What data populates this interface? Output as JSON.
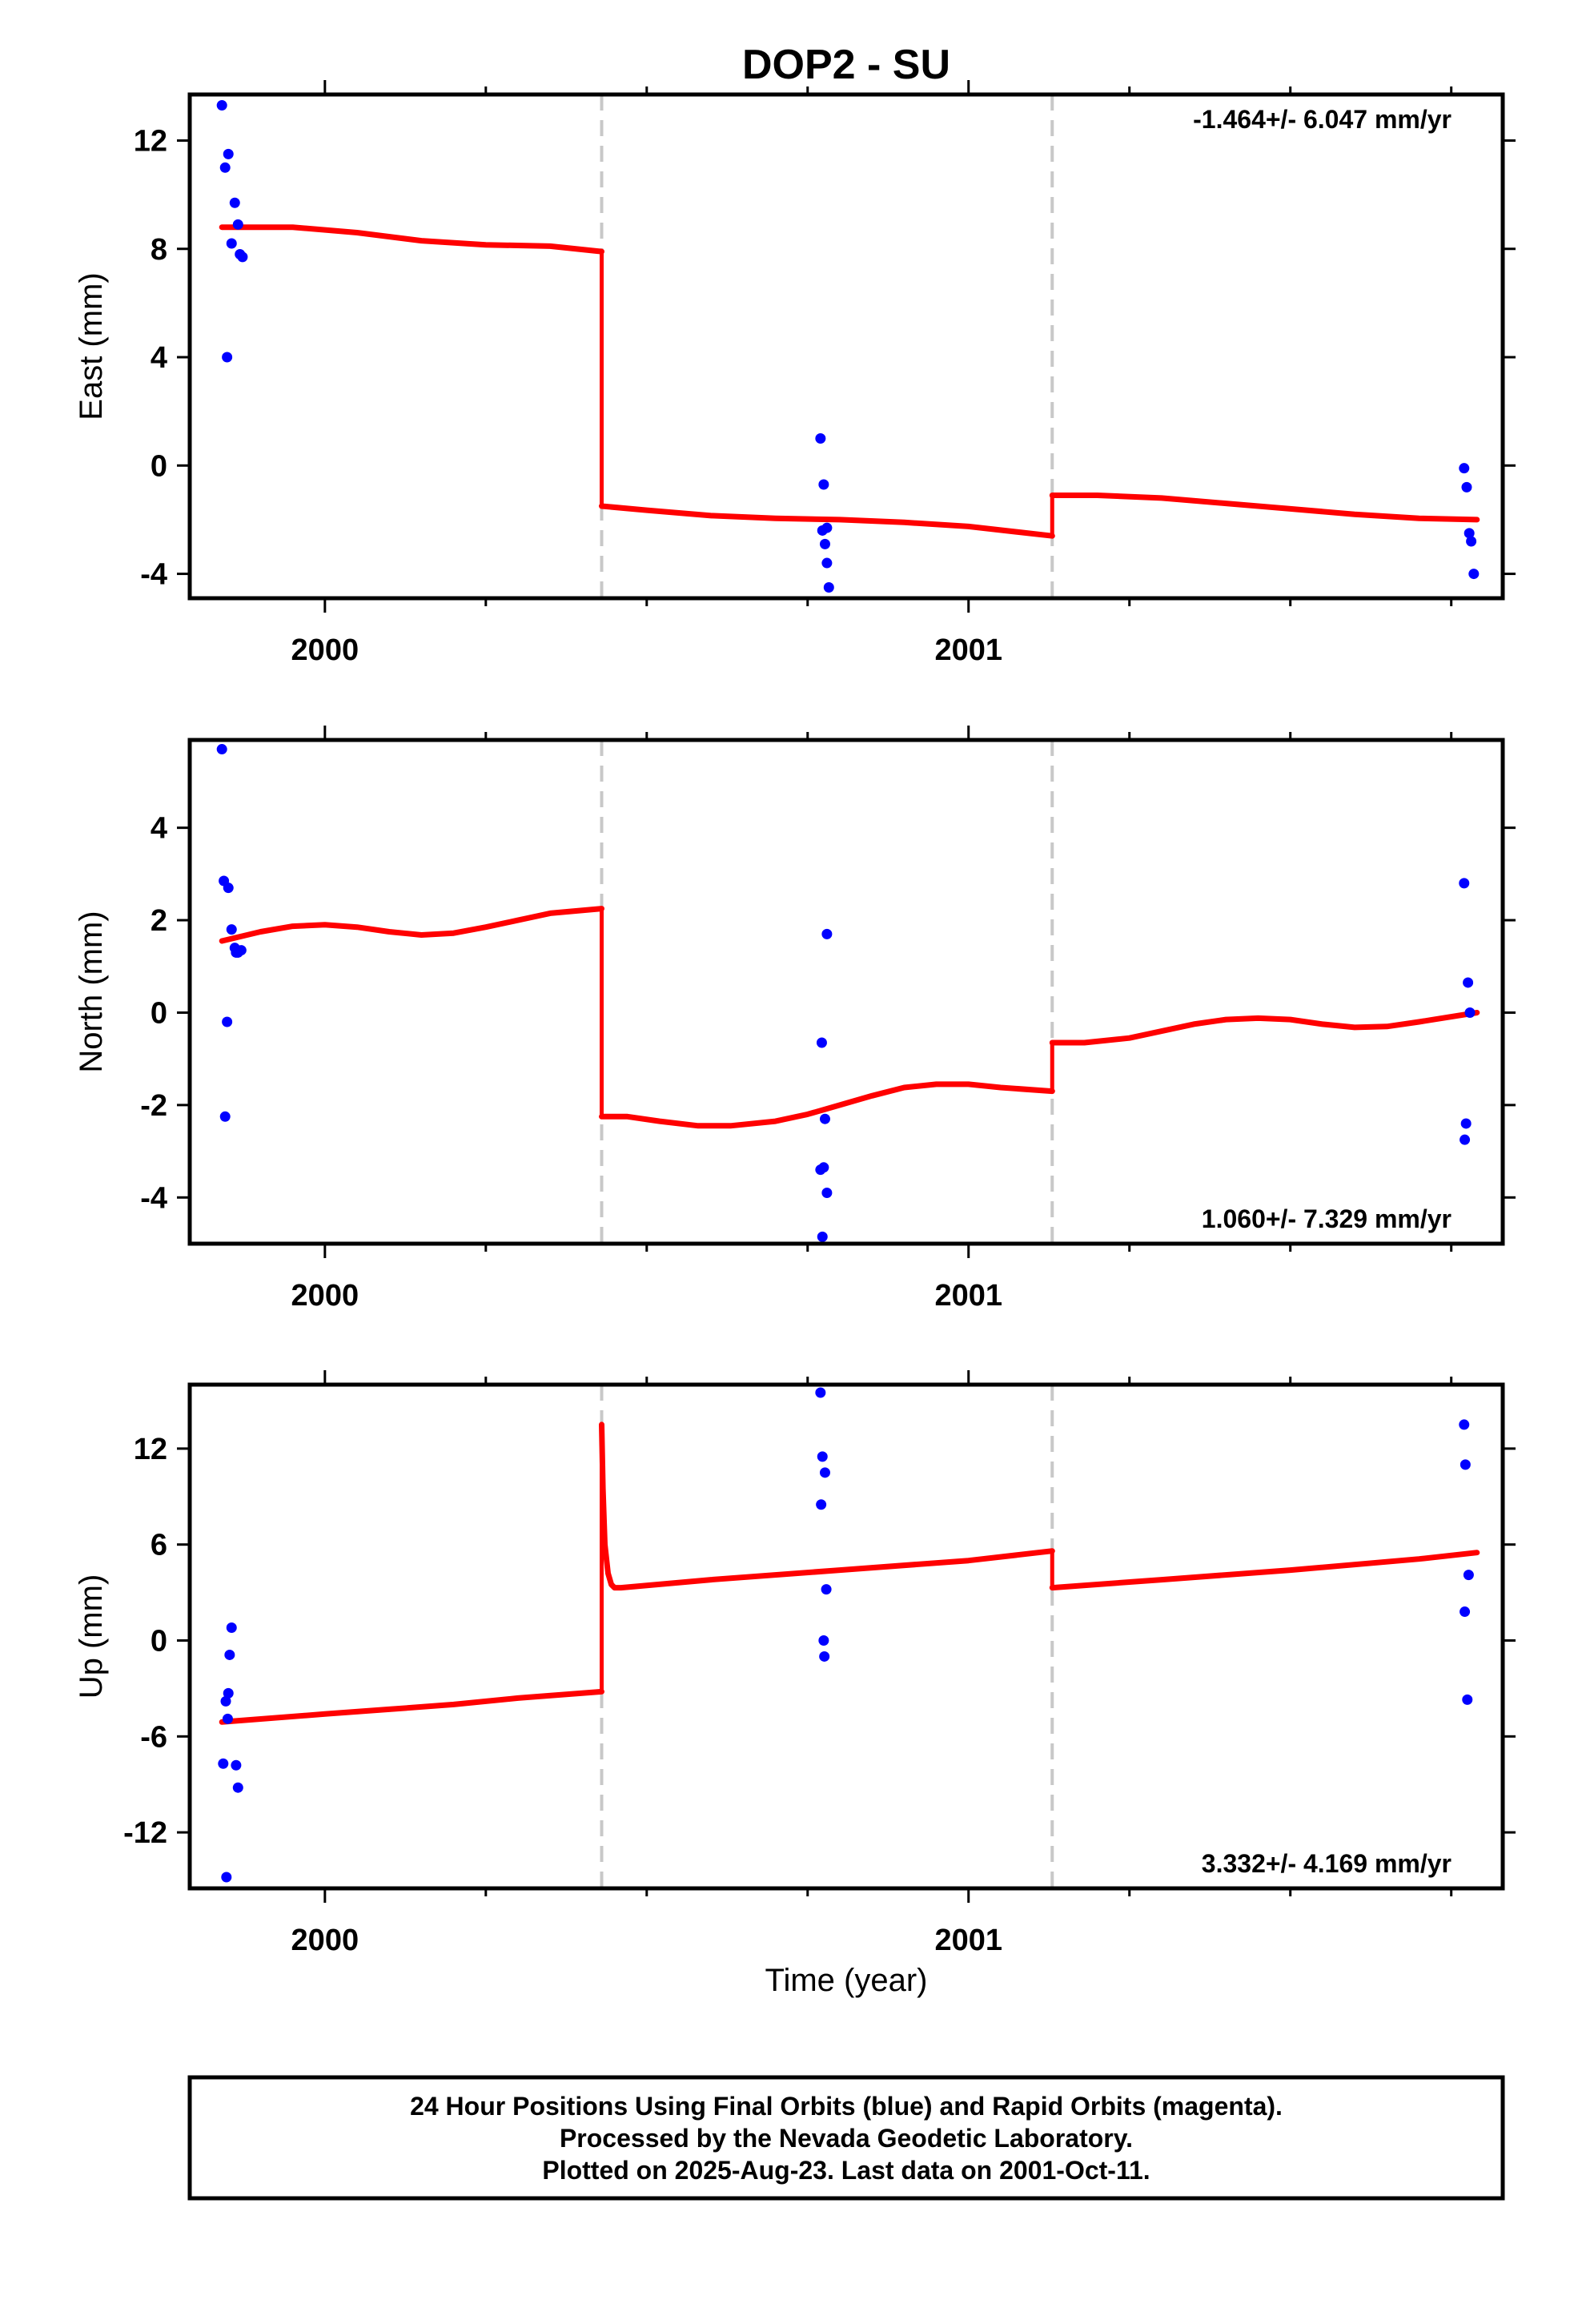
{
  "figure": {
    "title": "DOP2 - SU",
    "xlabel": "Time (year)",
    "footer_lines": [
      "24 Hour Positions Using Final Orbits (blue) and Rapid Orbits (magenta).",
      "Processed by the Nevada Geodetic Laboratory.",
      "Plotted on 2025-Aug-23. Last data on 2001-Oct-11."
    ]
  },
  "colors": {
    "final_orbits": "#0000ff",
    "model_fit": "#ff0000",
    "breaks": "#c8c8c8",
    "frame": "#000000"
  },
  "chart_data": [
    {
      "type": "scatter",
      "ylabel": "East (mm)",
      "rate_text": "-1.464+/- 6.047 mm/yr",
      "rate_position": "top-right",
      "xlim": [
        1999.79,
        2001.83
      ],
      "ylim": [
        -4.9,
        13.7
      ],
      "yticks": [
        -4,
        0,
        4,
        8,
        12
      ],
      "xticks": [
        2000,
        2001
      ],
      "minor_xticks": [
        2000.25,
        2000.5,
        2000.75,
        2001.25,
        2001.5,
        2001.75
      ],
      "breaks": [
        2000.43,
        2001.13
      ],
      "series": [
        {
          "x": [
            1999.84,
            1999.845,
            1999.85,
            1999.855,
            1999.86,
            1999.865,
            1999.868,
            1999.872,
            1999.848
          ],
          "y": [
            13.3,
            11.0,
            11.5,
            8.2,
            9.7,
            8.9,
            7.8,
            7.7,
            4.0
          ]
        },
        {
          "x": [
            2000.77,
            2000.775,
            2000.78,
            2000.773,
            2000.777,
            2000.78,
            2000.783,
            2001.77,
            2001.774,
            2001.778,
            2001.781,
            2001.785
          ],
          "y": [
            1.0,
            -0.7,
            -2.3,
            -2.4,
            -2.9,
            -3.6,
            -4.5,
            -0.1,
            -0.8,
            -2.5,
            -2.8,
            -4.0
          ]
        }
      ],
      "model_segments": [
        {
          "x": [
            1999.84,
            1999.95,
            2000.05,
            2000.15,
            2000.25,
            2000.35,
            2000.43
          ],
          "y": [
            8.8,
            8.8,
            8.6,
            8.3,
            8.15,
            8.1,
            7.9
          ]
        },
        {
          "x": [
            2000.43,
            2000.5,
            2000.6,
            2000.7,
            2000.8,
            2000.9,
            2001.0,
            2001.13
          ],
          "y": [
            -1.5,
            -1.65,
            -1.85,
            -1.95,
            -2.0,
            -2.1,
            -2.25,
            -2.6
          ]
        },
        {
          "x": [
            2001.13,
            2001.2,
            2001.3,
            2001.4,
            2001.5,
            2001.6,
            2001.7,
            2001.79
          ],
          "y": [
            -1.1,
            -1.1,
            -1.2,
            -1.4,
            -1.6,
            -1.8,
            -1.95,
            -2.0
          ]
        }
      ]
    },
    {
      "type": "scatter",
      "ylabel": "North (mm)",
      "rate_text": "1.060+/- 7.329 mm/yr",
      "rate_position": "bottom-right",
      "xlim": [
        1999.79,
        2001.83
      ],
      "ylim": [
        -5.0,
        5.9
      ],
      "yticks": [
        -4,
        -2,
        0,
        2,
        4
      ],
      "xticks": [
        2000,
        2001
      ],
      "minor_xticks": [
        2000.25,
        2000.5,
        2000.75,
        2001.25,
        2001.5,
        2001.75
      ],
      "breaks": [
        2000.43,
        2001.13
      ],
      "series": [
        {
          "x": [
            1999.84,
            1999.843,
            1999.85,
            1999.855,
            1999.86,
            1999.865,
            1999.862,
            1999.848,
            1999.845,
            1999.87
          ],
          "y": [
            5.7,
            2.85,
            2.7,
            1.8,
            1.4,
            1.3,
            1.3,
            -0.2,
            -2.25,
            1.35
          ]
        },
        {
          "x": [
            2000.78,
            2000.772,
            2000.777,
            2000.77,
            2000.775,
            2000.78,
            2000.773,
            2001.77,
            2001.776,
            2001.779,
            2001.773,
            2001.771
          ],
          "y": [
            1.7,
            -0.65,
            -2.3,
            -3.4,
            -3.35,
            -3.9,
            -4.85,
            2.8,
            0.65,
            0.0,
            -2.4,
            -2.75
          ]
        }
      ],
      "model_segments": [
        {
          "x": [
            1999.84,
            1999.9,
            1999.95,
            2000.0,
            2000.05,
            2000.1,
            2000.15,
            2000.2,
            2000.25,
            2000.3,
            2000.35,
            2000.43
          ],
          "y": [
            1.55,
            1.75,
            1.87,
            1.9,
            1.85,
            1.75,
            1.68,
            1.72,
            1.85,
            2.0,
            2.15,
            2.25
          ]
        },
        {
          "x": [
            2000.43,
            2000.47,
            2000.52,
            2000.58,
            2000.63,
            2000.7,
            2000.75,
            2000.8,
            2000.85,
            2000.9,
            2000.95,
            2001.0,
            2001.05,
            2001.13
          ],
          "y": [
            -2.25,
            -2.25,
            -2.35,
            -2.45,
            -2.45,
            -2.35,
            -2.2,
            -2.0,
            -1.8,
            -1.62,
            -1.55,
            -1.55,
            -1.62,
            -1.7
          ]
        },
        {
          "x": [
            2001.13,
            2001.18,
            2001.25,
            2001.3,
            2001.35,
            2001.4,
            2001.45,
            2001.5,
            2001.55,
            2001.6,
            2001.65,
            2001.7,
            2001.79
          ],
          "y": [
            -0.65,
            -0.65,
            -0.55,
            -0.4,
            -0.25,
            -0.15,
            -0.12,
            -0.15,
            -0.25,
            -0.32,
            -0.3,
            -0.2,
            0.0
          ]
        }
      ]
    },
    {
      "type": "scatter",
      "ylabel": "Up (mm)",
      "rate_text": "3.332+/- 4.169 mm/yr",
      "rate_position": "bottom-right",
      "xlim": [
        1999.79,
        2001.83
      ],
      "ylim": [
        -15.5,
        16.0
      ],
      "yticks": [
        -12,
        -6,
        0,
        6,
        12
      ],
      "xticks": [
        2000,
        2001
      ],
      "minor_xticks": [
        2000.25,
        2000.5,
        2000.75,
        2001.25,
        2001.5,
        2001.75
      ],
      "breaks": [
        2000.43,
        2001.13
      ],
      "series": [
        {
          "x": [
            1999.855,
            1999.852,
            1999.85,
            1999.846,
            1999.849,
            1999.842,
            1999.862,
            1999.865,
            1999.847
          ],
          "y": [
            0.8,
            -0.9,
            -3.3,
            -3.8,
            -4.9,
            -7.7,
            -7.8,
            -9.2,
            -14.8
          ]
        },
        {
          "x": [
            2000.77,
            2000.773,
            2000.777,
            2000.771,
            2000.779,
            2000.775,
            2000.776,
            2001.77,
            2001.772,
            2001.777,
            2001.771,
            2001.775
          ],
          "y": [
            15.5,
            11.5,
            10.5,
            8.5,
            3.2,
            0.0,
            -1.0,
            13.5,
            11.0,
            4.1,
            1.8,
            -3.7
          ]
        }
      ],
      "model_segments": [
        {
          "x": [
            1999.84,
            2000.0,
            2000.1,
            2000.2,
            2000.3,
            2000.43
          ],
          "y": [
            -5.1,
            -4.6,
            -4.3,
            -4.0,
            -3.6,
            -3.2
          ]
        },
        {
          "x": [
            2000.43,
            2000.432,
            2000.435,
            2000.44,
            2000.445,
            2000.45,
            2000.46,
            2000.6,
            2000.8,
            2001.0,
            2001.13
          ],
          "y": [
            13.5,
            9.5,
            6.0,
            4.2,
            3.5,
            3.3,
            3.3,
            3.8,
            4.4,
            5.0,
            5.6
          ]
        },
        {
          "x": [
            2001.13,
            2001.3,
            2001.5,
            2001.7,
            2001.79
          ],
          "y": [
            3.3,
            3.8,
            4.4,
            5.1,
            5.5
          ]
        }
      ]
    }
  ]
}
